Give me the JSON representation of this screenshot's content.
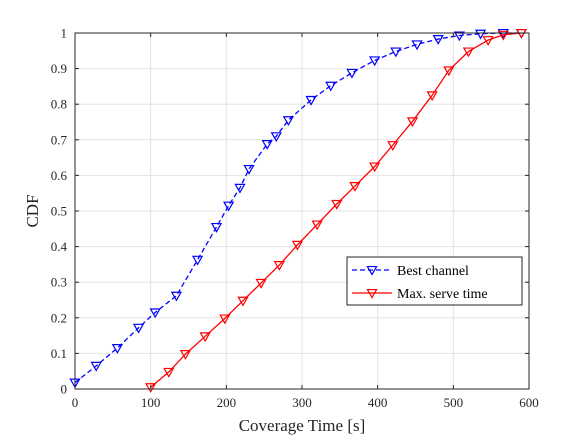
{
  "chart_data": {
    "type": "line",
    "title": "",
    "xlabel": "Coverage Time [s]",
    "ylabel": "CDF",
    "xlim": [
      0,
      600
    ],
    "ylim": [
      0,
      1
    ],
    "xticks": [
      0,
      100,
      200,
      300,
      400,
      500,
      600
    ],
    "yticks": [
      0,
      0.1,
      0.2,
      0.3,
      0.4,
      0.5,
      0.6,
      0.7,
      0.8,
      0.9,
      1
    ],
    "xtick_labels": [
      "0",
      "100",
      "200",
      "300",
      "400",
      "500",
      "600"
    ],
    "ytick_labels": [
      "0",
      "0.1",
      "0.2",
      "0.3",
      "0.4",
      "0.5",
      "0.6",
      "0.7",
      "0.8",
      "0.9",
      "1"
    ],
    "grid": true,
    "legend_position": "lower-right",
    "series": [
      {
        "name": "Best channel",
        "color": "#0000ff",
        "line_style": "dashed",
        "marker": "triangle-down",
        "x": [
          0,
          28,
          56,
          84,
          106,
          134,
          162,
          187,
          203,
          218,
          230,
          254,
          266,
          282,
          312,
          338,
          366,
          396,
          424,
          452,
          480,
          508,
          536,
          566,
          590
        ],
        "y": [
          0.018,
          0.065,
          0.115,
          0.172,
          0.215,
          0.262,
          0.363,
          0.455,
          0.515,
          0.565,
          0.618,
          0.688,
          0.71,
          0.755,
          0.812,
          0.852,
          0.888,
          0.923,
          0.948,
          0.968,
          0.983,
          0.993,
          0.998,
          1.0,
          1.0
        ]
      },
      {
        "name": "Max. serve time",
        "color": "#ff0000",
        "line_style": "solid",
        "marker": "triangle-down",
        "x": [
          100,
          124,
          146,
          172,
          198,
          222,
          246,
          270,
          294,
          320,
          346,
          370,
          396,
          420,
          446,
          472,
          494,
          520,
          546,
          566,
          590
        ],
        "y": [
          0.005,
          0.048,
          0.098,
          0.148,
          0.198,
          0.248,
          0.298,
          0.348,
          0.405,
          0.462,
          0.52,
          0.57,
          0.625,
          0.685,
          0.752,
          0.825,
          0.895,
          0.948,
          0.98,
          0.995,
          1.0
        ]
      }
    ]
  }
}
